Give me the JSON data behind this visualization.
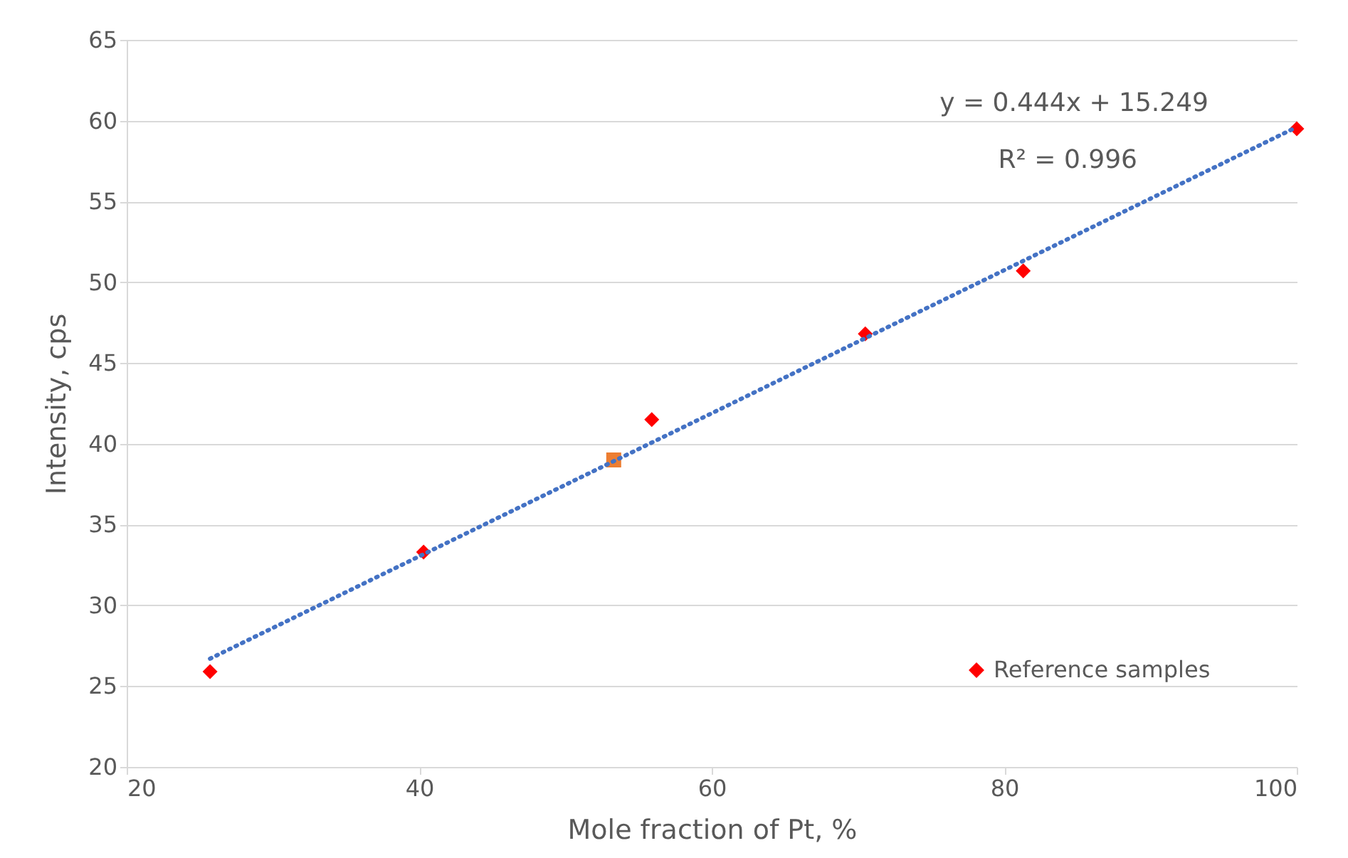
{
  "chart_data": {
    "type": "scatter",
    "xlabel": "Mole fraction of Pt, %",
    "ylabel": "Intensity, cps",
    "series": [
      {
        "name": "Reference samples",
        "marker": "diamond",
        "color": "#ff0000",
        "x": [
          25.7,
          40.3,
          55.9,
          70.5,
          81.3,
          100
        ],
        "values": [
          25.9,
          33.3,
          41.5,
          46.8,
          50.7,
          59.5
        ]
      },
      {
        "marker": "square",
        "color": "#ed7d31",
        "x": [
          53.3
        ],
        "values": [
          39.0
        ]
      },
      {
        "type": "line",
        "line_style": "dotted",
        "color": "#4472c4",
        "x": [
          25.7,
          100
        ],
        "values": [
          26.7,
          59.6
        ]
      }
    ],
    "annotations": [
      "y = 0.444x + 15.249",
      "R² = 0.996"
    ],
    "xlim": [
      20,
      100
    ],
    "xticks": [
      20,
      40,
      60,
      80,
      100
    ],
    "ylim": [
      20,
      65
    ],
    "yticks": [
      20,
      25,
      30,
      35,
      40,
      45,
      50,
      55,
      60,
      65
    ],
    "grid": "y",
    "legend": "bottom right"
  }
}
